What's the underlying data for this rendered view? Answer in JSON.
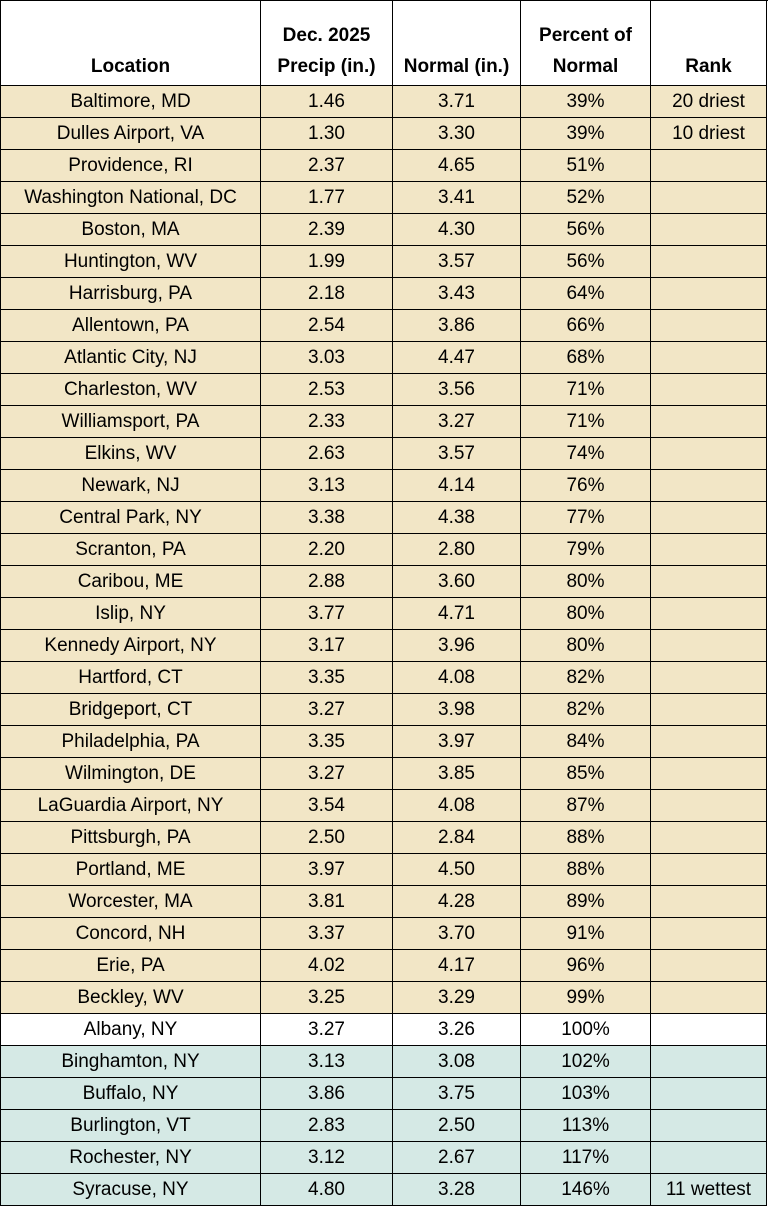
{
  "table": {
    "header": [
      [
        "Location"
      ],
      [
        "Dec. 2025",
        "Precip (in.)"
      ],
      [
        "Normal (in.)"
      ],
      [
        "Percent of",
        "Normal"
      ],
      [
        "Rank"
      ]
    ],
    "rows": [
      [
        "Baltimore, MD",
        "1.46",
        "3.71",
        "39%",
        "20 driest"
      ],
      [
        "Dulles Airport, VA",
        "1.30",
        "3.30",
        "39%",
        "10 driest"
      ],
      [
        "Providence, RI",
        "2.37",
        "4.65",
        "51%",
        null
      ],
      [
        "Washington National, DC",
        "1.77",
        "3.41",
        "52%",
        null
      ],
      [
        "Boston, MA",
        "2.39",
        "4.30",
        "56%",
        null
      ],
      [
        "Huntington, WV",
        "1.99",
        "3.57",
        "56%",
        null
      ],
      [
        "Harrisburg, PA",
        "2.18",
        "3.43",
        "64%",
        null
      ],
      [
        "Allentown, PA",
        "2.54",
        "3.86",
        "66%",
        null
      ],
      [
        "Atlantic City, NJ",
        "3.03",
        "4.47",
        "68%",
        null
      ],
      [
        "Charleston, WV",
        "2.53",
        "3.56",
        "71%",
        null
      ],
      [
        "Williamsport, PA",
        "2.33",
        "3.27",
        "71%",
        null
      ],
      [
        "Elkins, WV",
        "2.63",
        "3.57",
        "74%",
        null
      ],
      [
        "Newark, NJ",
        "3.13",
        "4.14",
        "76%",
        null
      ],
      [
        "Central Park, NY",
        "3.38",
        "4.38",
        "77%",
        null
      ],
      [
        "Scranton, PA",
        "2.20",
        "2.80",
        "79%",
        null
      ],
      [
        "Caribou, ME",
        "2.88",
        "3.60",
        "80%",
        null
      ],
      [
        "Islip, NY",
        "3.77",
        "4.71",
        "80%",
        null
      ],
      [
        "Kennedy Airport, NY",
        "3.17",
        "3.96",
        "80%",
        null
      ],
      [
        "Hartford, CT",
        "3.35",
        "4.08",
        "82%",
        null
      ],
      [
        "Bridgeport, CT",
        "3.27",
        "3.98",
        "82%",
        null
      ],
      [
        "Philadelphia, PA",
        "3.35",
        "3.97",
        "84%",
        null
      ],
      [
        "Wilmington, DE",
        "3.27",
        "3.85",
        "85%",
        null
      ],
      [
        "LaGuardia Airport, NY",
        "3.54",
        "4.08",
        "87%",
        null
      ],
      [
        "Pittsburgh, PA",
        "2.50",
        "2.84",
        "88%",
        null
      ],
      [
        "Portland, ME",
        "3.97",
        "4.50",
        "88%",
        null
      ],
      [
        "Worcester, MA",
        "3.81",
        "4.28",
        "89%",
        null
      ],
      [
        "Concord, NH",
        "3.37",
        "3.70",
        "91%",
        null
      ],
      [
        "Erie, PA",
        "4.02",
        "4.17",
        "96%",
        null
      ],
      [
        "Beckley, WV",
        "3.25",
        "3.29",
        "99%",
        null
      ],
      [
        "Albany, NY",
        "3.27",
        "3.26",
        "100%",
        null
      ],
      [
        "Binghamton, NY",
        "3.13",
        "3.08",
        "102%",
        null
      ],
      [
        "Buffalo, NY",
        "3.86",
        "3.75",
        "103%",
        null
      ],
      [
        "Burlington, VT",
        "2.83",
        "2.50",
        "113%",
        null
      ],
      [
        "Rochester, NY",
        "3.12",
        "2.67",
        "117%",
        null
      ],
      [
        "Syracuse, NY",
        "4.80",
        "3.28",
        "146%",
        "11 wettest"
      ]
    ],
    "row_colors": [
      "#f2e6c6",
      "#f2e6c6",
      "#f2e6c6",
      "#f2e6c6",
      "#f2e6c6",
      "#f2e6c6",
      "#f2e6c6",
      "#f2e6c6",
      "#f2e6c6",
      "#f2e6c6",
      "#f2e6c6",
      "#f2e6c6",
      "#f2e6c6",
      "#f2e6c6",
      "#f2e6c6",
      "#f2e6c6",
      "#f2e6c6",
      "#f2e6c6",
      "#f2e6c6",
      "#f2e6c6",
      "#f2e6c6",
      "#f2e6c6",
      "#f2e6c6",
      "#f2e6c6",
      "#f2e6c6",
      "#f2e6c6",
      "#f2e6c6",
      "#f2e6c6",
      "#f2e6c6",
      "#ffffff",
      "#d5e9e5",
      "#d5e9e5",
      "#d5e9e5",
      "#d5e9e5",
      "#d5e9e5"
    ]
  }
}
